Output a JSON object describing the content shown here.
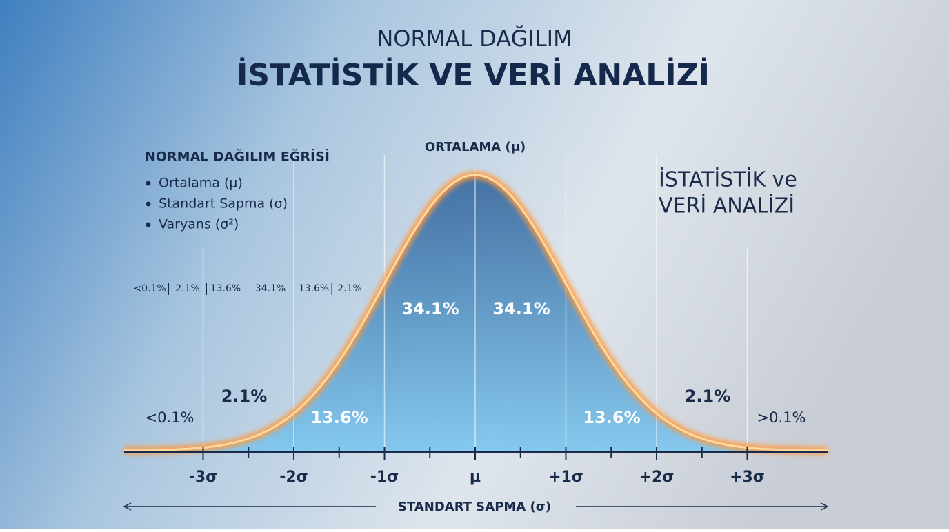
{
  "header": {
    "subtitle": "NORMAL DAĞILIM",
    "title": "İSTATİSTİK VE VERİ ANALİZİ"
  },
  "legend": {
    "title": "NORMAL DAĞILIM EĞRİSİ",
    "items": [
      "Ortalama (μ)",
      "Standart Sapma (σ)",
      "Varyans (σ²)"
    ]
  },
  "side_title": [
    "İSTATİSTİK ve",
    "VERİ ANALİZİ"
  ],
  "mean_label": "ORTALAMA (μ)",
  "strip": [
    "<0.1%",
    "2.1%",
    "13.6%",
    "34.1%",
    "13.6%",
    "2.1%"
  ],
  "regions": [
    "<0.1%",
    "2.1%",
    "13.6%",
    "34.1%",
    "34.1%",
    "13.6%",
    "2.1%",
    ">0.1%"
  ],
  "axis_ticks": [
    "-3σ",
    "-2σ",
    "-1σ",
    "μ",
    "+1σ",
    "+2σ",
    "+3σ"
  ],
  "axis_label": "STANDART SAPMA (σ)"
}
